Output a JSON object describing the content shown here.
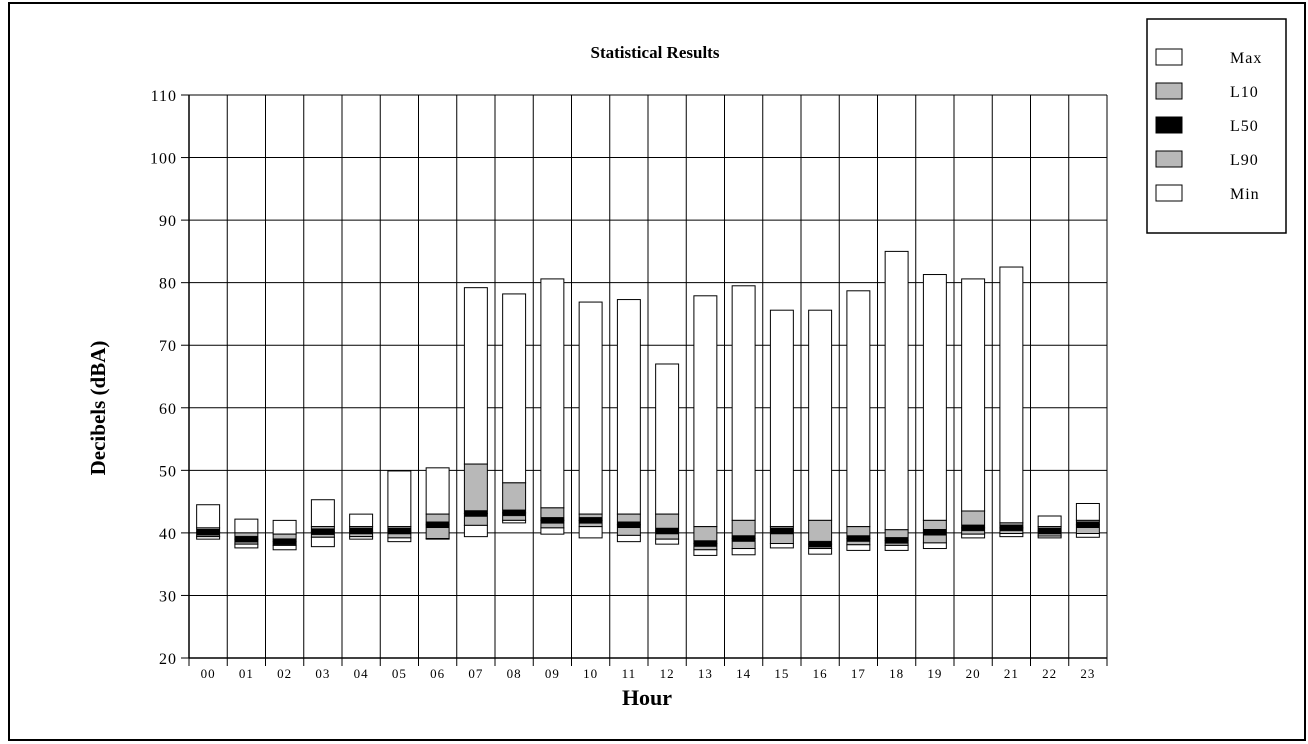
{
  "chart_data": {
    "type": "bar",
    "title": "Statistical Results",
    "xlabel": "Hour",
    "ylabel": "Decibels (dBA)",
    "ylim": [
      20,
      110
    ],
    "yticks": [
      20,
      30,
      40,
      50,
      60,
      70,
      80,
      90,
      100,
      110
    ],
    "grid": true,
    "legend_position": "top-right",
    "legend": [
      {
        "label": "Max",
        "color": "#ffffff"
      },
      {
        "label": "L10",
        "color": "#b8b8b8"
      },
      {
        "label": "L50",
        "color": "#000000"
      },
      {
        "label": "L90",
        "color": "#b8b8b8"
      },
      {
        "label": "Min",
        "color": "#ffffff"
      }
    ],
    "categories": [
      "00",
      "01",
      "02",
      "03",
      "04",
      "05",
      "06",
      "07",
      "08",
      "09",
      "10",
      "11",
      "12",
      "13",
      "14",
      "15",
      "16",
      "17",
      "18",
      "19",
      "20",
      "21",
      "22",
      "23"
    ],
    "series": [
      {
        "name": "Max",
        "values": [
          44.5,
          42.2,
          42.0,
          45.3,
          43.0,
          49.9,
          50.4,
          79.2,
          78.2,
          80.6,
          76.9,
          77.3,
          67.0,
          77.9,
          79.5,
          75.6,
          75.6,
          78.7,
          85.0,
          81.3,
          80.6,
          82.5,
          42.7,
          44.7
        ]
      },
      {
        "name": "L10",
        "values": [
          40.8,
          40.0,
          39.8,
          41.0,
          41.0,
          41.0,
          43.0,
          51.0,
          48.0,
          44.0,
          43.0,
          43.0,
          43.0,
          41.0,
          42.0,
          41.0,
          42.0,
          41.0,
          40.5,
          42.0,
          43.5,
          41.6,
          41.0,
          42.0
        ]
      },
      {
        "name": "L50",
        "values": [
          40.1,
          39.0,
          38.6,
          40.2,
          40.3,
          40.3,
          41.3,
          43.1,
          43.2,
          42.0,
          42.0,
          41.3,
          40.3,
          38.3,
          39.1,
          40.3,
          38.2,
          39.1,
          38.8,
          40.1,
          40.8,
          40.8,
          40.3,
          41.3
        ]
      },
      {
        "name": "L90",
        "values": [
          39.4,
          38.2,
          38.0,
          39.3,
          39.4,
          39.2,
          39.1,
          41.2,
          42.0,
          40.8,
          41.0,
          39.6,
          39.0,
          37.3,
          37.5,
          38.3,
          37.5,
          38.1,
          38.0,
          38.4,
          39.8,
          39.9,
          39.5,
          39.9
        ]
      },
      {
        "name": "Min",
        "values": [
          39.0,
          37.6,
          37.3,
          37.8,
          39.0,
          38.6,
          39.0,
          39.4,
          41.6,
          39.8,
          39.2,
          38.6,
          38.2,
          36.4,
          36.5,
          37.6,
          36.6,
          37.2,
          37.2,
          37.5,
          39.2,
          39.4,
          39.2,
          39.3
        ]
      }
    ]
  }
}
